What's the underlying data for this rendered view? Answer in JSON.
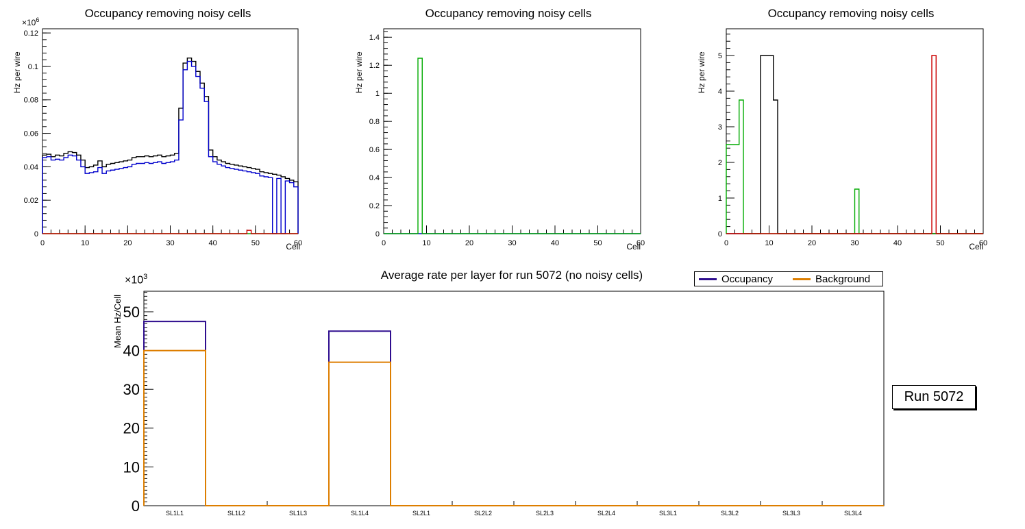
{
  "page": {
    "background": "#ffffff"
  },
  "run_box": {
    "text": "Run 5072"
  },
  "legend": {
    "entries": [
      {
        "label": "Occupancy",
        "color": "#2e0d8e"
      },
      {
        "label": "Background",
        "color": "#dd7e00"
      }
    ]
  },
  "chart_data": [
    {
      "id": "occupancy-left",
      "type": "step-histogram",
      "title": "Occupancy removing noisy cells",
      "x_axis": {
        "label": "Cell",
        "min": 0,
        "max": 60,
        "major_ticks": [
          0,
          10,
          20,
          30,
          40,
          50,
          60
        ],
        "tick_labels": [
          "0",
          "10",
          "20",
          "30",
          "40",
          "50",
          "60"
        ],
        "minor_step": 2
      },
      "y_axis": {
        "label": "Hz per wire",
        "min": 0,
        "max": 0.1225,
        "major_ticks": [
          0,
          0.02,
          0.04,
          0.06,
          0.08,
          0.1,
          0.12
        ],
        "tick_labels": [
          "0",
          "0.02",
          "0.04",
          "0.06",
          "0.08",
          "0.1",
          "0.12"
        ],
        "minor_step": 0.004,
        "scale_base": "×10",
        "scale_exp": "6"
      },
      "bins": 60,
      "series": [
        {
          "name": "black",
          "color": "#000000",
          "width": 1.4,
          "values": [
            0.047,
            0.0475,
            0.046,
            0.047,
            0.0465,
            0.048,
            0.049,
            0.0485,
            0.047,
            0.044,
            0.0395,
            0.04,
            0.041,
            0.0435,
            0.04,
            0.0415,
            0.042,
            0.0425,
            0.043,
            0.0435,
            0.044,
            0.0455,
            0.046,
            0.046,
            0.0465,
            0.046,
            0.0465,
            0.047,
            0.046,
            0.0465,
            0.047,
            0.048,
            0.075,
            0.102,
            0.105,
            0.103,
            0.097,
            0.09,
            0.082,
            0.05,
            0.046,
            0.044,
            0.043,
            0.042,
            0.0415,
            0.041,
            0.0405,
            0.04,
            0.0395,
            0.039,
            0.0385,
            0.037,
            0.0365,
            0.036,
            0.0355,
            0.035,
            0.034,
            0.033,
            0.032,
            0.031
          ]
        },
        {
          "name": "blue",
          "color": "#0000cc",
          "width": 1.4,
          "values": [
            0.0455,
            0.046,
            0.044,
            0.0445,
            0.044,
            0.0455,
            0.047,
            0.0465,
            0.044,
            0.04,
            0.036,
            0.0365,
            0.037,
            0.0395,
            0.036,
            0.0375,
            0.038,
            0.0385,
            0.039,
            0.0395,
            0.04,
            0.0415,
            0.042,
            0.042,
            0.0425,
            0.042,
            0.0425,
            0.043,
            0.042,
            0.0425,
            0.043,
            0.044,
            0.068,
            0.098,
            0.103,
            0.1,
            0.094,
            0.087,
            0.079,
            0.046,
            0.043,
            0.0415,
            0.0405,
            0.0395,
            0.039,
            0.0385,
            0.038,
            0.0375,
            0.037,
            0.0365,
            0.036,
            0.0345,
            0.034,
            0.0335,
            0,
            0.033,
            0,
            0.0315,
            0.0305,
            0.028
          ]
        },
        {
          "name": "green",
          "color": "#00aa00",
          "width": 1.4,
          "sparse": {
            "length": 60,
            "entries": []
          }
        },
        {
          "name": "red",
          "color": "#cc0000",
          "width": 1.4,
          "sparse": {
            "length": 60,
            "entries": [
              [
                48,
                0.002
              ]
            ]
          }
        }
      ]
    },
    {
      "id": "occupancy-middle",
      "type": "step-histogram",
      "title": "Occupancy removing noisy cells",
      "x_axis": {
        "label": "Cell",
        "min": 0,
        "max": 60,
        "major_ticks": [
          0,
          10,
          20,
          30,
          40,
          50,
          60
        ],
        "tick_labels": [
          "0",
          "10",
          "20",
          "30",
          "40",
          "50",
          "60"
        ],
        "minor_step": 2
      },
      "y_axis": {
        "label": "Hz per wire",
        "min": 0,
        "max": 1.46,
        "major_ticks": [
          0,
          0.2,
          0.4,
          0.6,
          0.8,
          1,
          1.2,
          1.4
        ],
        "tick_labels": [
          "0",
          "0.2",
          "0.4",
          "0.6",
          "0.8",
          "1",
          "1.2",
          "1.4"
        ],
        "minor_step": 0.04
      },
      "bins": 60,
      "series": [
        {
          "name": "blue",
          "color": "#0000cc",
          "width": 1.4,
          "sparse": {
            "length": 60,
            "entries": []
          }
        },
        {
          "name": "green",
          "color": "#00aa00",
          "width": 1.4,
          "sparse": {
            "length": 60,
            "entries": [
              [
                8,
                1.25
              ]
            ]
          }
        }
      ]
    },
    {
      "id": "occupancy-right",
      "type": "step-histogram",
      "title": "Occupancy removing noisy cells",
      "x_axis": {
        "label": "Cell",
        "min": 0,
        "max": 60,
        "major_ticks": [
          0,
          10,
          20,
          30,
          40,
          50,
          60
        ],
        "tick_labels": [
          "0",
          "10",
          "20",
          "30",
          "40",
          "50",
          "60"
        ],
        "minor_step": 2
      },
      "y_axis": {
        "label": "Hz per wire",
        "min": 0,
        "max": 5.75,
        "major_ticks": [
          0,
          1,
          2,
          3,
          4,
          5
        ],
        "tick_labels": [
          "0",
          "1",
          "2",
          "3",
          "4",
          "5"
        ],
        "minor_step": 0.2
      },
      "bins": 60,
      "series": [
        {
          "name": "black",
          "color": "#000000",
          "width": 1.4,
          "sparse": {
            "length": 60,
            "entries": [
              [
                8,
                5
              ],
              [
                9,
                5
              ],
              [
                10,
                5
              ],
              [
                11,
                3.75
              ]
            ]
          }
        },
        {
          "name": "green",
          "color": "#00aa00",
          "width": 1.4,
          "sparse": {
            "length": 60,
            "entries": [
              [
                0,
                2.5
              ],
              [
                1,
                2.5
              ],
              [
                2,
                2.5
              ],
              [
                3,
                3.75
              ],
              [
                30,
                1.25
              ]
            ]
          }
        },
        {
          "name": "red",
          "color": "#cc0000",
          "width": 1.4,
          "sparse": {
            "length": 60,
            "entries": [
              [
                48,
                5
              ]
            ]
          }
        }
      ]
    },
    {
      "id": "average-rate-per-layer",
      "type": "step-histogram",
      "title": "Average rate per layer for run 5072 (no noisy cells)",
      "x_axis": {
        "categories": [
          "SL1L1",
          "SL1L2",
          "SL1L3",
          "SL1L4",
          "SL2L1",
          "SL2L2",
          "SL2L3",
          "SL2L4",
          "SL3L1",
          "SL3L2",
          "SL3L3",
          "SL3L4"
        ]
      },
      "y_axis": {
        "label": "Mean Hz/Cell",
        "min": 0,
        "max": 55.3,
        "major_ticks": [
          0,
          10,
          20,
          30,
          40,
          50
        ],
        "tick_labels": [
          "0",
          "10",
          "20",
          "30",
          "40",
          "50"
        ],
        "minor_step": 1,
        "scale_base": "×10",
        "scale_exp": "3"
      },
      "bins": 12,
      "series": [
        {
          "name": "Occupancy",
          "color": "#2e0d8e",
          "width": 2,
          "values": [
            47.5,
            0,
            0,
            45,
            0,
            0,
            0,
            0,
            0,
            0,
            0,
            0
          ]
        },
        {
          "name": "Background",
          "color": "#dd7e00",
          "width": 2,
          "values": [
            40,
            0,
            0,
            37,
            0,
            0,
            0,
            0,
            0,
            0,
            0,
            0
          ]
        }
      ]
    }
  ]
}
